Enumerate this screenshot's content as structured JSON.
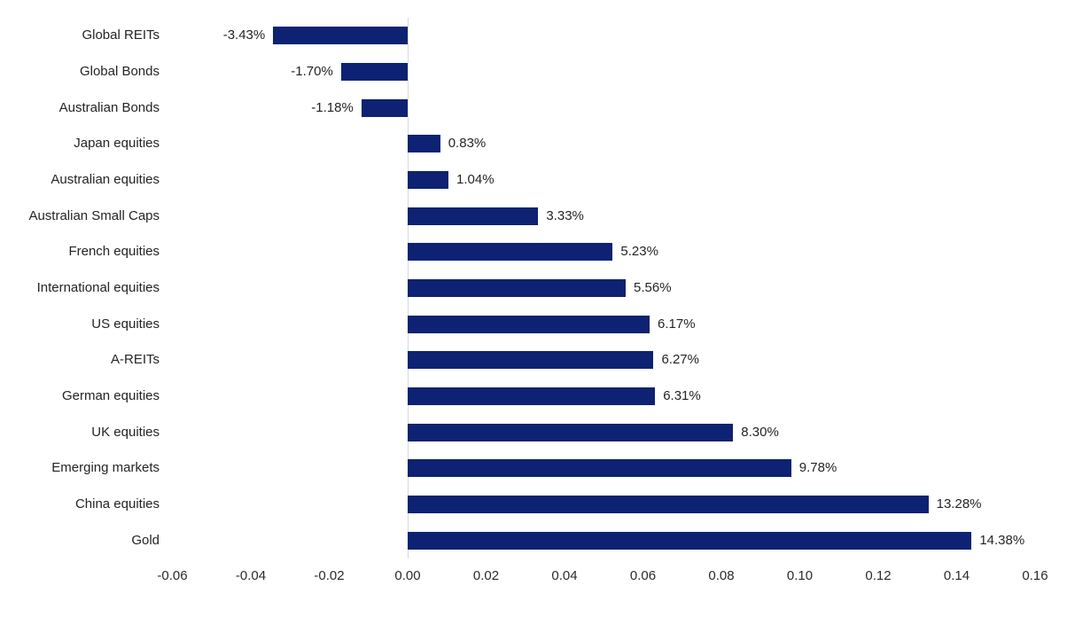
{
  "chart_data": {
    "type": "bar",
    "orientation": "horizontal",
    "title": "",
    "categories": [
      "Global REITs",
      "Global Bonds",
      "Australian Bonds",
      "Japan equities",
      "Australian equities",
      "Australian Small Caps",
      "French equities",
      "International equities",
      "US equities",
      "A-REITs",
      "German equities",
      "UK equities",
      "Emerging markets",
      "China equities",
      "Gold"
    ],
    "values": [
      -0.0343,
      -0.017,
      -0.0118,
      0.0083,
      0.0104,
      0.0333,
      0.0523,
      0.0556,
      0.0617,
      0.0627,
      0.0631,
      0.083,
      0.0978,
      0.1328,
      0.1438
    ],
    "data_labels": [
      "-3.43%",
      "-1.70%",
      "-1.18%",
      "0.83%",
      "1.04%",
      "3.33%",
      "5.23%",
      "5.56%",
      "6.17%",
      "6.27%",
      "6.31%",
      "8.30%",
      "9.78%",
      "13.28%",
      "14.38%"
    ],
    "x_ticks": [
      "-0.06",
      "-0.04",
      "-0.02",
      "0.00",
      "0.02",
      "0.04",
      "0.06",
      "0.08",
      "0.10",
      "0.12",
      "0.14",
      "0.16"
    ],
    "x_tick_values": [
      -0.06,
      -0.04,
      -0.02,
      0.0,
      0.02,
      0.04,
      0.06,
      0.08,
      0.1,
      0.12,
      0.14,
      0.16
    ],
    "xlim": [
      -0.06,
      0.16
    ],
    "bar_color": "#0d2272",
    "grid": false,
    "legend": false
  }
}
